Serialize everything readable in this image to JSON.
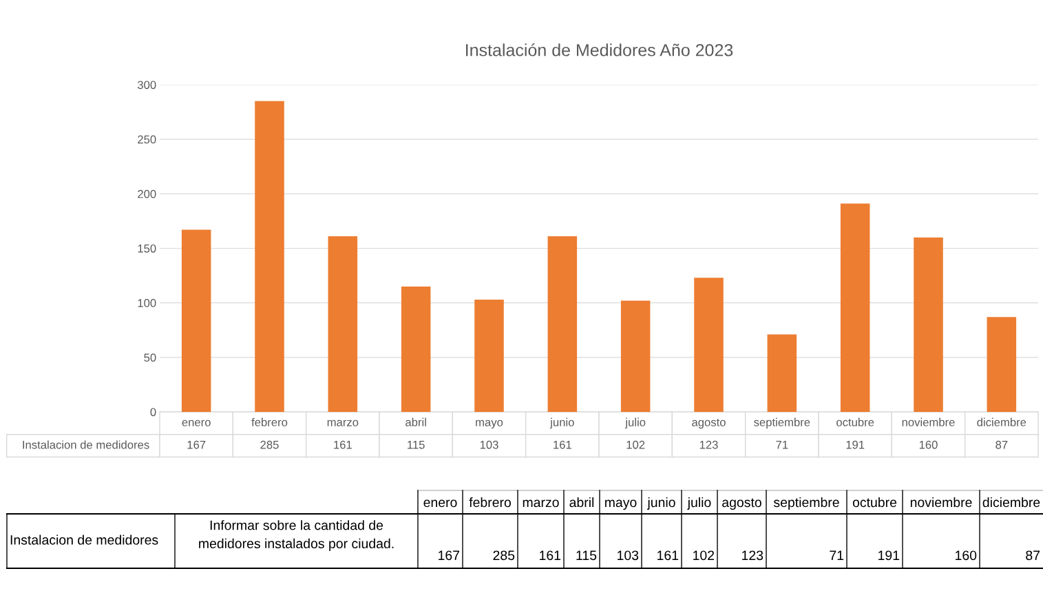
{
  "chart_data": [
    {
      "type": "bar",
      "title": "Instalación de Medidores Año 2023",
      "categories": [
        "enero",
        "febrero",
        "marzo",
        "abril",
        "mayo",
        "junio",
        "julio",
        "agosto",
        "septiembre",
        "octubre",
        "noviembre",
        "diciembre"
      ],
      "series": [
        {
          "name": "Instalacion de medidores",
          "color": "#ed7d31",
          "values": [
            167,
            285,
            161,
            115,
            103,
            161,
            102,
            123,
            71,
            191,
            160,
            87
          ]
        }
      ],
      "ylim": [
        0,
        300
      ],
      "yticks": [
        0,
        50,
        100,
        150,
        200,
        250,
        300
      ],
      "grid": "y",
      "data_labels": true,
      "tick_labels": "y"
    },
    {
      "type": "other",
      "data_labels": true,
      "categories": [
        "enero",
        "febrero",
        "marzo",
        "abril",
        "mayo",
        "junio",
        "julio",
        "agosto",
        "septiembre",
        "octubre",
        "noviembre",
        "diciembre"
      ],
      "values": [
        167,
        285,
        161,
        115,
        103,
        161,
        102,
        123,
        71,
        191,
        160,
        87
      ],
      "annotations": [
        "Instalacion de medidores",
        "Informar sobre la cantidad de medidores instalados por ciudad."
      ]
    }
  ]
}
